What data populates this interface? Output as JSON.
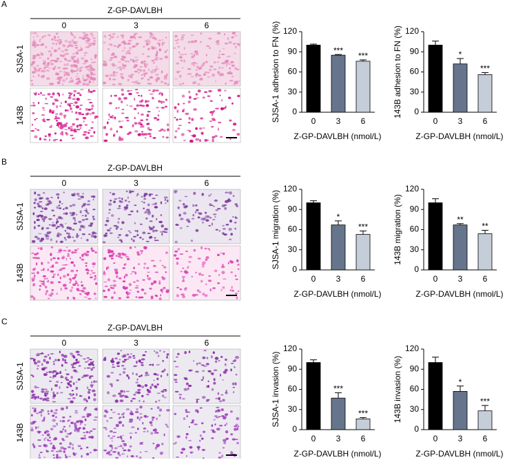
{
  "panels": [
    {
      "label": "A",
      "treatment": "Z-GP-DAVLBH",
      "doses": [
        "0",
        "3",
        "6"
      ],
      "rows": [
        "SJSA-1",
        "143B"
      ]
    },
    {
      "label": "B",
      "treatment": "Z-GP-DAVLBH",
      "doses": [
        "0",
        "3",
        "6"
      ],
      "rows": [
        "SJSA-1",
        "143B"
      ]
    },
    {
      "label": "C",
      "treatment": "Z-GP-DAVLBH",
      "doses": [
        "0",
        "3",
        "6"
      ],
      "rows": [
        "SJSA-1",
        "143B"
      ]
    }
  ],
  "chart_data": [
    {
      "type": "bar",
      "ylabel": "SJSA-1 adhesion to FN (%)",
      "xlabel": "Z-GP-DAVLBH (nmol/L)",
      "categories": [
        "0",
        "3",
        "6"
      ],
      "values": [
        100,
        85,
        76
      ],
      "errors": [
        1.5,
        1,
        2
      ],
      "annotations": [
        null,
        "***",
        "***"
      ],
      "colors": [
        "#000000",
        "#66758c",
        "#c5ced8"
      ],
      "ylim": [
        0,
        120
      ],
      "yticks": [
        0,
        30,
        60,
        90,
        120
      ]
    },
    {
      "type": "bar",
      "ylabel": "143B adhesion to FN (%)",
      "xlabel": "Z-GP-DAVLBH (nmol/L)",
      "categories": [
        "0",
        "3",
        "6"
      ],
      "values": [
        100,
        72,
        56
      ],
      "errors": [
        6,
        8,
        3
      ],
      "annotations": [
        null,
        "*",
        "***"
      ],
      "colors": [
        "#000000",
        "#66758c",
        "#c5ced8"
      ],
      "ylim": [
        0,
        120
      ],
      "yticks": [
        0,
        30,
        60,
        90,
        120
      ]
    },
    {
      "type": "bar",
      "ylabel": "SJSA-1 migration (%)",
      "xlabel": "Z-GP-DAVLBH (nmol/L)",
      "categories": [
        "0",
        "3",
        "6"
      ],
      "values": [
        100,
        67,
        53
      ],
      "errors": [
        3,
        6,
        5
      ],
      "annotations": [
        null,
        "*",
        "***"
      ],
      "colors": [
        "#000000",
        "#66758c",
        "#c5ced8"
      ],
      "ylim": [
        0,
        120
      ],
      "yticks": [
        0,
        30,
        60,
        90,
        120
      ]
    },
    {
      "type": "bar",
      "ylabel": "143B migration (%)",
      "xlabel": "Z-GP-DAVLBH (nmol/L)",
      "categories": [
        "0",
        "3",
        "6"
      ],
      "values": [
        100,
        67,
        54
      ],
      "errors": [
        6,
        2,
        5
      ],
      "annotations": [
        null,
        "**",
        "**"
      ],
      "colors": [
        "#000000",
        "#66758c",
        "#c5ced8"
      ],
      "ylim": [
        0,
        120
      ],
      "yticks": [
        0,
        30,
        60,
        90,
        120
      ]
    },
    {
      "type": "bar",
      "ylabel": "SJSA-1 invasion (%)",
      "xlabel": "Z-GP-DAVLBH (nmol/L)",
      "categories": [
        "0",
        "3",
        "6"
      ],
      "values": [
        100,
        47,
        16
      ],
      "errors": [
        4,
        8,
        2
      ],
      "annotations": [
        null,
        "***",
        "***"
      ],
      "colors": [
        "#000000",
        "#66758c",
        "#c5ced8"
      ],
      "ylim": [
        0,
        120
      ],
      "yticks": [
        0,
        30,
        60,
        90,
        120
      ]
    },
    {
      "type": "bar",
      "ylabel": "143B invasion (%)",
      "xlabel": "Z-GP-DAVLBH (nmol/L)",
      "categories": [
        "0",
        "3",
        "6"
      ],
      "values": [
        100,
        57,
        28
      ],
      "errors": [
        8,
        8,
        8
      ],
      "annotations": [
        null,
        "*",
        "***"
      ],
      "colors": [
        "#000000",
        "#66758c",
        "#c5ced8"
      ],
      "ylim": [
        0,
        120
      ],
      "yticks": [
        0,
        30,
        60,
        90,
        120
      ]
    }
  ]
}
